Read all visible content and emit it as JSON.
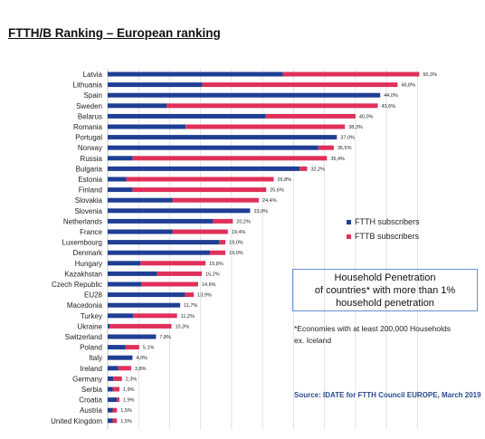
{
  "page": {
    "title": "FTTH/B Ranking – European ranking"
  },
  "legend": {
    "items": [
      {
        "label": "FTTH subscribers",
        "color": "#1f3f94"
      },
      {
        "label": "FTTB subscribers",
        "color": "#e0305a"
      }
    ]
  },
  "note_box": {
    "line1": "Household Penetration",
    "line2": "of countries* with more than 1%",
    "line3": "household penetration"
  },
  "footnote": {
    "line1": "*Economies with at least 200,000 Households",
    "line2": "ex. Iceland"
  },
  "source": "Source: IDATE for FTTH Council EUROPE, March 2019",
  "chart_data": {
    "type": "bar",
    "orientation": "horizontal",
    "stacked": true,
    "xlim": [
      0,
      52
    ],
    "grid": true,
    "legend_position": "right",
    "categories": [
      "Latvia",
      "Lithuania",
      "Spain",
      "Sweden",
      "Belarus",
      "Romania",
      "Portugal",
      "Norway",
      "Russia",
      "Bulgaria",
      "Estonia",
      "Finland",
      "Slovakia",
      "Slovenia",
      "Netherlands",
      "France",
      "Luxembourg",
      "Denmark",
      "Hungary",
      "Kazakhstan",
      "Czech Republic",
      "EU28",
      "Macedonia",
      "Turkey",
      "Ukraine",
      "Switzerland",
      "Poland",
      "Italy",
      "Ireland",
      "Germany",
      "Serbia",
      "Croatia",
      "Austria",
      "United Kingdom"
    ],
    "total_labels": [
      "50,3%",
      "46,8%",
      "44,0%",
      "43,6%",
      "40,0%",
      "38,3%",
      "37,0%",
      "36,5%",
      "35,4%",
      "32,2%",
      "26,8%",
      "25,6%",
      "24,4%",
      "23,0%",
      "20,2%",
      "19,4%",
      "19,0%",
      "19,0%",
      "15,8%",
      "15,2%",
      "14,6%",
      "13,9%",
      "11,7%",
      "11,2%",
      "10,3%",
      "7,8%",
      "5,1%",
      "4,0%",
      "3,8%",
      "2,3%",
      "1,9%",
      "1,9%",
      "1,5%",
      "1,5%"
    ],
    "series": [
      {
        "name": "FTTH subscribers",
        "color": "#1f3f94",
        "values": [
          28.3,
          15.3,
          44.0,
          9.5,
          25.5,
          12.6,
          37.0,
          34.0,
          4.0,
          31.0,
          3.0,
          4.0,
          10.5,
          23.0,
          17.0,
          10.5,
          18.0,
          16.5,
          5.3,
          8.0,
          5.4,
          12.5,
          11.7,
          4.1,
          0.3,
          7.8,
          2.9,
          4.0,
          1.7,
          0.9,
          0.8,
          1.5,
          0.8,
          0.8
        ]
      },
      {
        "name": "FTTB subscribers",
        "color": "#e0305a",
        "values": [
          22.0,
          31.5,
          0.0,
          34.1,
          14.5,
          25.7,
          0.0,
          2.5,
          31.4,
          1.2,
          23.8,
          21.6,
          13.9,
          0.0,
          3.2,
          8.9,
          1.0,
          2.5,
          10.5,
          7.2,
          9.2,
          1.4,
          0.0,
          7.1,
          10.0,
          0.0,
          2.2,
          0.0,
          2.1,
          1.4,
          1.1,
          0.4,
          0.7,
          0.7
        ]
      }
    ]
  }
}
